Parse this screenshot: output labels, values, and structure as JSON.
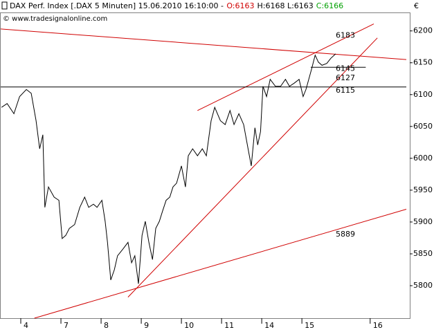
{
  "chart_data": {
    "type": "line",
    "title": "DAX Perf. Index [.DAX  5 Minuten] 15.06.2010 16:10:00 -",
    "subtitle_parts": [
      {
        "text": "O:6163",
        "color": "#d00000"
      },
      {
        "text": "H:6168 L:6163",
        "color": "#000000"
      },
      {
        "text": "C:6166",
        "color": "#00a000"
      }
    ],
    "watermark": "© www.tradesignalonline.com",
    "y_unit": "€",
    "xlim": [
      -0.5,
      9.6
    ],
    "xticks": [
      {
        "value": 0,
        "label": "4"
      },
      {
        "value": 1,
        "label": "7"
      },
      {
        "value": 2,
        "label": "8"
      },
      {
        "value": 3,
        "label": "9"
      },
      {
        "value": 4,
        "label": "10"
      },
      {
        "value": 5,
        "label": "11"
      },
      {
        "value": 6,
        "label": "14"
      },
      {
        "value": 7,
        "label": "15"
      },
      {
        "value": 8.7,
        "label": "16"
      }
    ],
    "ylim": [
      5749,
      6229
    ],
    "yticks": [
      5800,
      5850,
      5900,
      5950,
      6000,
      6050,
      6100,
      6150,
      6200
    ],
    "grid": false,
    "series": [
      {
        "name": "DAX",
        "color": "#000000",
        "x": [
          -0.48,
          -0.34,
          -0.17,
          -0.03,
          0.14,
          0.26,
          0.38,
          0.47,
          0.55,
          0.6,
          0.69,
          0.83,
          0.95,
          1.03,
          1.12,
          1.21,
          1.34,
          1.47,
          1.59,
          1.69,
          1.81,
          1.9,
          2.02,
          2.1,
          2.16,
          2.24,
          2.33,
          2.41,
          2.55,
          2.67,
          2.76,
          2.84,
          2.93,
          3.02,
          3.1,
          3.19,
          3.28,
          3.36,
          3.45,
          3.53,
          3.62,
          3.71,
          3.79,
          3.88,
          4.0,
          4.1,
          4.17,
          4.28,
          4.4,
          4.52,
          4.62,
          4.74,
          4.83,
          4.97,
          5.09,
          5.21,
          5.31,
          5.43,
          5.55,
          5.66,
          5.74,
          5.83,
          5.9,
          5.97,
          6.03,
          6.12,
          6.21,
          6.34,
          6.47,
          6.59,
          6.69,
          6.81,
          6.93,
          7.03,
          7.1,
          7.24,
          7.33,
          7.41,
          7.5,
          7.62,
          7.72,
          7.84
        ],
        "values": [
          6080,
          6086,
          6070,
          6097,
          6108,
          6102,
          6059,
          6015,
          6037,
          5923,
          5955,
          5939,
          5934,
          5874,
          5879,
          5890,
          5896,
          5923,
          5939,
          5923,
          5928,
          5923,
          5934,
          5901,
          5868,
          5809,
          5825,
          5847,
          5858,
          5868,
          5836,
          5847,
          5803,
          5879,
          5901,
          5868,
          5841,
          5890,
          5901,
          5917,
          5934,
          5939,
          5955,
          5961,
          5988,
          5955,
          6004,
          6015,
          6004,
          6015,
          6004,
          6059,
          6080,
          6059,
          6053,
          6075,
          6053,
          6070,
          6053,
          6015,
          5988,
          6048,
          6021,
          6042,
          6113,
          6097,
          6124,
          6113,
          6113,
          6124,
          6113,
          6118,
          6124,
          6097,
          6108,
          6140,
          6162,
          6151,
          6146,
          6149,
          6157,
          6164
        ]
      }
    ],
    "trendlines": [
      {
        "color": "#d00000",
        "x": [
          -0.5,
          9.6
        ],
        "values": [
          6203,
          6155
        ]
      },
      {
        "color": "#d00000",
        "x": [
          4.4,
          8.79
        ],
        "values": [
          6075,
          6211
        ]
      },
      {
        "color": "#d00000",
        "x": [
          2.67,
          8.88
        ],
        "values": [
          5782,
          6189
        ]
      },
      {
        "color": "#d00000",
        "x": [
          0.34,
          9.6
        ],
        "values": [
          5749,
          5920
        ]
      },
      {
        "color": "#000000",
        "x": [
          -0.5,
          9.6
        ],
        "values": [
          6112,
          6112
        ]
      },
      {
        "color": "#000000",
        "x": [
          7.22,
          8.59
        ],
        "values": [
          6143,
          6143
        ]
      }
    ],
    "annotations": [
      {
        "value": 6183,
        "color": "#d00000"
      },
      {
        "value": 6145,
        "color": "#000000"
      },
      {
        "value": 6127,
        "color": "#d00000"
      },
      {
        "value": 6115,
        "color": "#000000"
      },
      {
        "value": 5889,
        "color": "#d00000"
      }
    ]
  }
}
